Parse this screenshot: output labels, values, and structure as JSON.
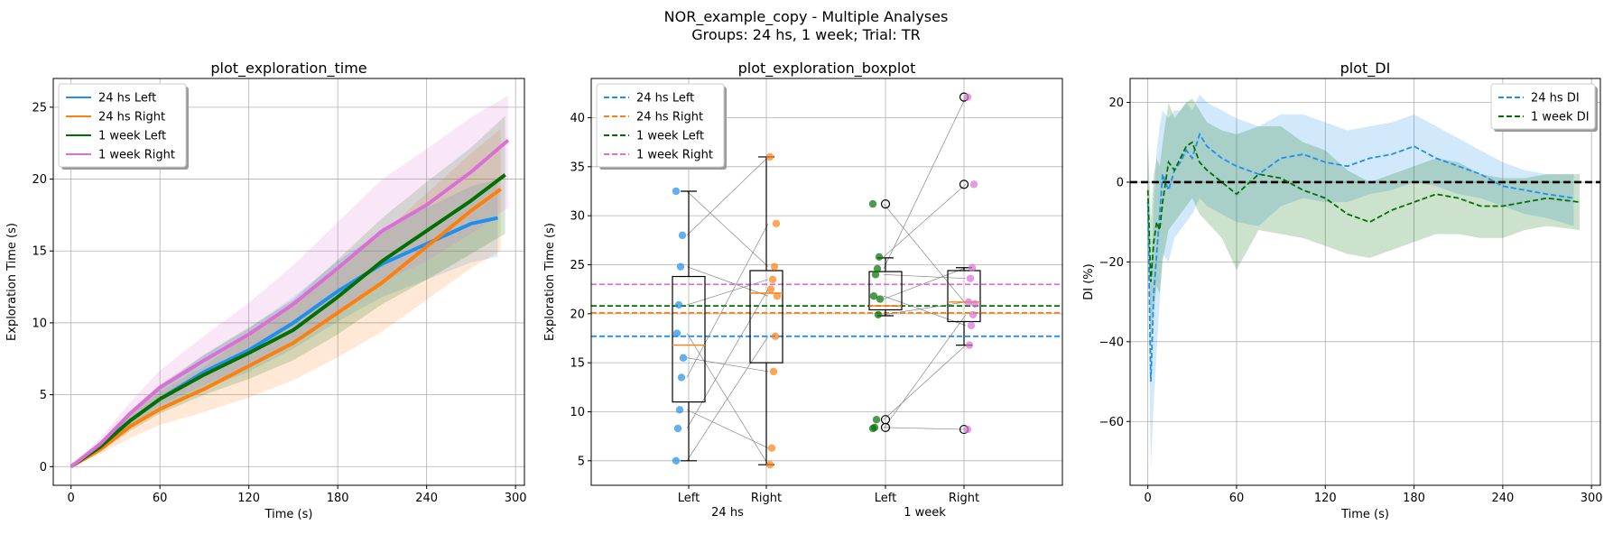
{
  "figure": {
    "suptitle_line1": "NOR_example_copy - Multiple Analyses",
    "suptitle_line2": "Groups: 24 hs, 1 week; Trial: TR"
  },
  "colors": {
    "24hs_left": "#1f8ff0",
    "24hs_right": "#ff7f0e",
    "1week_left": "#007000",
    "1week_right": "#da70d6",
    "grid": "#b0b0b0"
  },
  "chart_data": [
    {
      "type": "line",
      "title": "plot_exploration_time",
      "xlabel": "Time (s)",
      "ylabel": "Exploration Time (s)",
      "xlim": [
        -12,
        306
      ],
      "ylim": [
        -1.3,
        27
      ],
      "xticks": [
        0,
        60,
        120,
        180,
        240,
        300
      ],
      "yticks": [
        0,
        5,
        10,
        15,
        20,
        25
      ],
      "grid": true,
      "legend": "top-left",
      "series": [
        {
          "name": "24 hs Left",
          "color_key": "24hs_left",
          "x": [
            0,
            20,
            40,
            60,
            90,
            120,
            150,
            180,
            210,
            240,
            270,
            288
          ],
          "y": [
            0,
            1.5,
            3.2,
            4.7,
            6.6,
            8.1,
            10.0,
            12.2,
            14.1,
            15.5,
            16.9,
            17.3
          ],
          "band_low": [
            0,
            1.2,
            2.7,
            3.9,
            5.4,
            6.6,
            8.2,
            10.1,
            11.8,
            13.0,
            14.2,
            14.6
          ],
          "band_high": [
            0,
            1.8,
            3.7,
            5.5,
            7.8,
            9.6,
            11.8,
            14.3,
            16.4,
            18.0,
            19.5,
            20.0
          ]
        },
        {
          "name": "24 hs Right",
          "color_key": "24hs_right",
          "x": [
            0,
            20,
            40,
            60,
            90,
            120,
            150,
            180,
            210,
            240,
            270,
            290
          ],
          "y": [
            0,
            1.2,
            2.8,
            4.0,
            5.4,
            7.0,
            8.6,
            10.7,
            12.8,
            15.3,
            17.8,
            19.3
          ],
          "band_low": [
            0,
            0.9,
            2.0,
            2.9,
            3.8,
            4.8,
            6.0,
            7.6,
            9.4,
            11.6,
            13.8,
            15.0
          ],
          "band_high": [
            0,
            1.5,
            3.6,
            5.2,
            7.0,
            9.2,
            11.2,
            13.8,
            16.2,
            19.0,
            21.8,
            23.5
          ]
        },
        {
          "name": "1 week Left",
          "color_key": "1week_left",
          "x": [
            0,
            20,
            40,
            60,
            90,
            120,
            150,
            180,
            210,
            240,
            270,
            293
          ],
          "y": [
            0,
            1.4,
            3.2,
            4.7,
            6.4,
            7.9,
            9.5,
            11.8,
            14.3,
            16.4,
            18.5,
            20.3
          ],
          "band_low": [
            0,
            1.1,
            2.5,
            3.7,
            5.0,
            6.1,
            7.4,
            9.2,
            11.3,
            13.0,
            14.8,
            16.2
          ],
          "band_high": [
            0,
            1.7,
            3.9,
            5.7,
            7.8,
            9.7,
            11.6,
            14.4,
            17.3,
            19.8,
            22.2,
            24.4
          ]
        },
        {
          "name": "1 week Right",
          "color_key": "1week_right",
          "x": [
            0,
            20,
            40,
            60,
            90,
            120,
            150,
            180,
            210,
            240,
            270,
            295
          ],
          "y": [
            0,
            1.6,
            3.7,
            5.5,
            7.4,
            9.2,
            11.3,
            13.8,
            16.4,
            18.2,
            20.5,
            22.7
          ],
          "band_low": [
            0,
            1.2,
            2.9,
            4.3,
            5.7,
            7.0,
            8.6,
            10.6,
            12.8,
            14.3,
            16.2,
            18.0
          ],
          "band_high": [
            0,
            2.0,
            4.5,
            6.7,
            9.1,
            11.4,
            14.0,
            17.0,
            20.0,
            22.1,
            24.3,
            25.8
          ]
        }
      ]
    },
    {
      "type": "box",
      "title": "plot_exploration_boxplot",
      "xlabel": "",
      "ylabel": "Exploration Time (s)",
      "ylim": [
        2.5,
        44
      ],
      "yticks": [
        5,
        10,
        15,
        20,
        25,
        30,
        35,
        40
      ],
      "grid": true,
      "legend": "top-left",
      "category_labels": [
        "Left",
        "Right",
        "Left",
        "Right"
      ],
      "group_labels": [
        "24 hs",
        "1 week"
      ],
      "boxes": [
        {
          "color_key": "24hs_left",
          "whislo": 5.0,
          "q1": 11.0,
          "med": 16.8,
          "q3": 23.8,
          "whishi": 32.5,
          "fliers": [],
          "points": [
            32.5,
            28.0,
            24.8,
            20.9,
            18.0,
            15.5,
            13.5,
            10.2,
            8.3,
            5.0
          ]
        },
        {
          "color_key": "24hs_right",
          "whislo": 4.6,
          "q1": 15.0,
          "med": 22.1,
          "q3": 24.4,
          "whishi": 36.0,
          "fliers": [],
          "points": [
            36.0,
            29.2,
            24.8,
            23.5,
            22.5,
            21.8,
            17.7,
            14.1,
            6.3,
            4.6
          ]
        },
        {
          "color_key": "1week_left",
          "whislo": 19.8,
          "q1": 20.4,
          "med": 20.8,
          "q3": 24.3,
          "whishi": 25.7,
          "fliers": [
            31.2,
            9.2,
            8.4
          ],
          "points": [
            31.2,
            25.8,
            24.6,
            24.0,
            21.8,
            21.5,
            19.9,
            9.2,
            8.4,
            8.3
          ]
        },
        {
          "color_key": "1week_right",
          "whislo": 16.8,
          "q1": 19.2,
          "med": 21.2,
          "q3": 24.4,
          "whishi": 24.7,
          "fliers": [
            42.1,
            33.2,
            8.2
          ],
          "points": [
            42.1,
            33.2,
            24.7,
            23.6,
            21.2,
            21.0,
            19.9,
            18.8,
            16.8,
            8.2
          ]
        }
      ],
      "pair_lines": [
        [
          0,
          32.5,
          1,
          24.8
        ],
        [
          0,
          28.0,
          1,
          36.0
        ],
        [
          0,
          24.8,
          1,
          21.8
        ],
        [
          0,
          20.9,
          1,
          23.5
        ],
        [
          0,
          18.0,
          1,
          4.6
        ],
        [
          0,
          15.5,
          1,
          14.1
        ],
        [
          0,
          13.5,
          1,
          29.2
        ],
        [
          0,
          10.2,
          1,
          6.3
        ],
        [
          0,
          8.3,
          1,
          22.5
        ],
        [
          0,
          5.0,
          1,
          17.7
        ],
        [
          2,
          31.2,
          3,
          21.0
        ],
        [
          2,
          25.8,
          3,
          33.2
        ],
        [
          2,
          24.6,
          3,
          42.1
        ],
        [
          2,
          24.0,
          3,
          23.6
        ],
        [
          2,
          21.8,
          3,
          18.8
        ],
        [
          2,
          21.5,
          3,
          24.7
        ],
        [
          2,
          19.9,
          3,
          21.2
        ],
        [
          2,
          9.2,
          3,
          16.8
        ],
        [
          2,
          8.4,
          3,
          8.2
        ],
        [
          2,
          8.3,
          3,
          19.9
        ]
      ],
      "mean_lines": [
        {
          "name": "24 hs Left",
          "color_key": "24hs_left",
          "y": 17.7
        },
        {
          "name": "24 hs Right",
          "color_key": "24hs_right",
          "y": 20.1
        },
        {
          "name": "1 week Left",
          "color_key": "1week_left",
          "y": 20.8
        },
        {
          "name": "1 week Right",
          "color_key": "1week_right",
          "y": 23.0
        }
      ]
    },
    {
      "type": "line",
      "title": "plot_DI",
      "xlabel": "Time (s)",
      "ylabel": "DI (%)",
      "xlim": [
        -12,
        306
      ],
      "ylim": [
        -76,
        26
      ],
      "xticks": [
        0,
        60,
        120,
        180,
        240,
        300
      ],
      "yticks": [
        20,
        0,
        -20,
        -40,
        -60
      ],
      "grid": true,
      "legend": "top-right",
      "zero_line": true,
      "series": [
        {
          "name": "24 hs DI",
          "color_key": "24hs_left",
          "x": [
            0,
            2,
            4,
            6,
            8,
            10,
            14,
            18,
            22,
            26,
            30,
            35,
            40,
            50,
            60,
            75,
            90,
            105,
            120,
            135,
            150,
            165,
            180,
            195,
            210,
            225,
            240,
            255,
            270,
            288
          ],
          "y": [
            -5,
            -50,
            -28,
            -18,
            -8,
            2,
            -2,
            3,
            5,
            8,
            6,
            12,
            9,
            6,
            4,
            2,
            6,
            7,
            5,
            4,
            6,
            7,
            9,
            6,
            4,
            2,
            -1,
            -2,
            -3,
            -4
          ],
          "band_low": [
            -20,
            -72,
            -55,
            -42,
            -30,
            -18,
            -20,
            -14,
            -12,
            -10,
            -8,
            -4,
            -6,
            -8,
            -10,
            -11,
            -6,
            -4,
            -5,
            -5,
            -3,
            -2,
            0,
            -1,
            -3,
            -4,
            -6,
            -8,
            -9,
            -11
          ],
          "band_high": [
            10,
            -25,
            -5,
            8,
            14,
            18,
            16,
            18,
            18,
            20,
            18,
            22,
            20,
            18,
            16,
            14,
            17,
            17,
            15,
            13,
            14,
            15,
            17,
            14,
            11,
            8,
            5,
            3,
            2,
            2
          ]
        },
        {
          "name": "1 week DI",
          "color_key": "1week_left",
          "x": [
            0,
            2,
            4,
            6,
            8,
            10,
            14,
            18,
            22,
            26,
            30,
            35,
            40,
            50,
            60,
            75,
            90,
            105,
            120,
            135,
            150,
            165,
            180,
            195,
            210,
            225,
            240,
            255,
            270,
            292
          ],
          "y": [
            -2,
            -25,
            -15,
            -10,
            -12,
            -5,
            5,
            3,
            6,
            9,
            10,
            5,
            3,
            0,
            -3,
            2,
            1,
            -2,
            -4,
            -8,
            -10,
            -7,
            -5,
            -3,
            -4,
            -6,
            -6,
            -5,
            -4,
            -5
          ],
          "band_low": [
            -15,
            -40,
            -32,
            -26,
            -28,
            -20,
            -12,
            -10,
            -8,
            -6,
            -4,
            -8,
            -10,
            -14,
            -22,
            -12,
            -13,
            -14,
            -16,
            -18,
            -19,
            -17,
            -15,
            -13,
            -13,
            -14,
            -14,
            -12,
            -11,
            -12
          ],
          "band_high": [
            12,
            -10,
            2,
            6,
            4,
            10,
            20,
            16,
            18,
            20,
            21,
            18,
            15,
            13,
            12,
            14,
            14,
            10,
            8,
            3,
            0,
            2,
            4,
            6,
            5,
            2,
            1,
            1,
            2,
            2
          ]
        }
      ]
    }
  ]
}
